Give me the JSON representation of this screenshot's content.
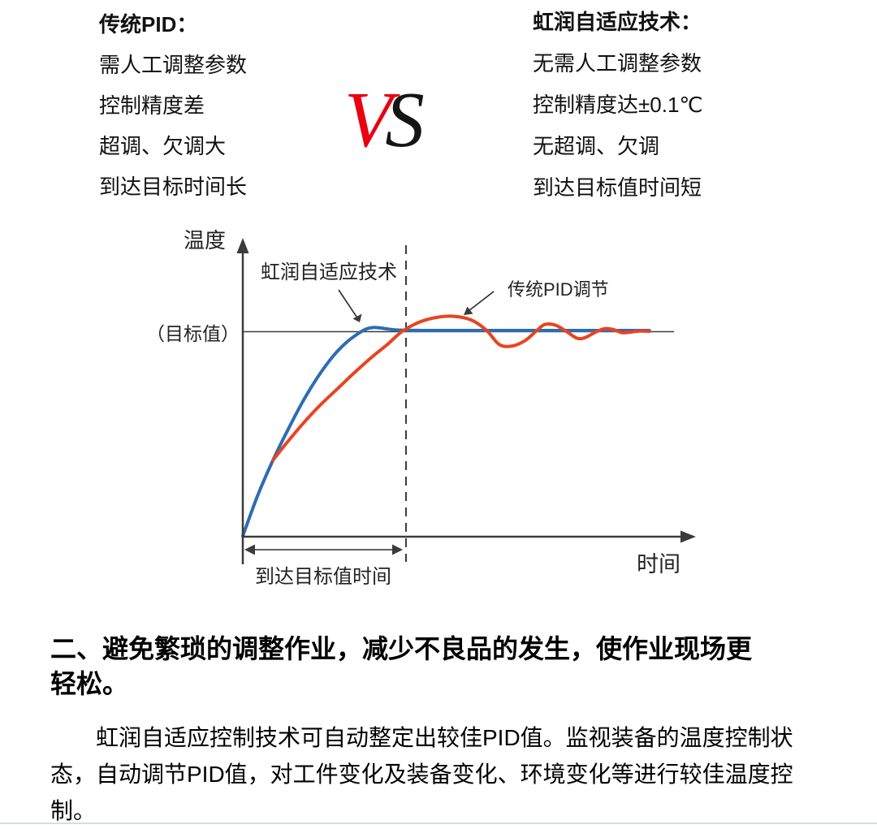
{
  "comparison": {
    "left": {
      "title": "传统PID：",
      "items": [
        "需人工调整参数",
        "控制精度差",
        "超调、欠调大",
        "到达目标时间长"
      ]
    },
    "vs": {
      "v": "V",
      "s": "S"
    },
    "right": {
      "title": "虹润自适应技术：",
      "items": [
        "无需人工调整参数",
        "控制精度达±0.1℃",
        "无超调、欠调",
        "到达目标值时间短"
      ]
    }
  },
  "chart_data": {
    "type": "line",
    "title": "",
    "xlabel": "时间",
    "ylabel": "温度",
    "target_label": "（目标值）",
    "target_value": 100,
    "axis_range": {
      "x": [
        0,
        100
      ],
      "y": [
        0,
        115
      ]
    },
    "grid": false,
    "legend_position": "inline-annotations",
    "annotations": {
      "adaptive_label": "虹润自适应技术",
      "pid_label": "传统PID调节",
      "reach_time_label": "到达目标值时间"
    },
    "series": [
      {
        "name": "虹润自适应技术",
        "color": "#2d6cb5",
        "points": [
          [
            0,
            0
          ],
          [
            3.5,
            20
          ],
          [
            7,
            37
          ],
          [
            10.5,
            52
          ],
          [
            14,
            66
          ],
          [
            17.5,
            78
          ],
          [
            21,
            88
          ],
          [
            24,
            94.5
          ],
          [
            26.5,
            98.5
          ],
          [
            28.5,
            101
          ],
          [
            30.5,
            101.9
          ],
          [
            33,
            101.3
          ],
          [
            36,
            100.6
          ],
          [
            42,
            100.4
          ],
          [
            60,
            100.4
          ],
          [
            80,
            100.4
          ],
          [
            94.3,
            100.4
          ]
        ]
      },
      {
        "name": "传统PID调节",
        "color": "#e8441f",
        "points": [
          [
            7,
            37
          ],
          [
            10,
            45
          ],
          [
            14,
            55
          ],
          [
            18,
            64
          ],
          [
            22,
            72
          ],
          [
            26,
            80
          ],
          [
            30,
            87.5
          ],
          [
            33.5,
            93.5
          ],
          [
            37,
            100
          ],
          [
            41,
            104.5
          ],
          [
            45,
            106.8
          ],
          [
            49,
            107.3
          ],
          [
            53,
            105.5
          ],
          [
            56.5,
            100.5
          ],
          [
            59.5,
            93.5
          ],
          [
            62.5,
            92.8
          ],
          [
            65.5,
            95.5
          ],
          [
            68,
            100
          ],
          [
            70,
            103.3
          ],
          [
            72.5,
            103
          ],
          [
            75,
            100
          ],
          [
            77.5,
            96.6
          ],
          [
            79.5,
            97
          ],
          [
            82,
            99.8
          ],
          [
            84,
            101.3
          ],
          [
            86,
            100.8
          ],
          [
            88,
            99.3
          ],
          [
            90,
            99.6
          ],
          [
            92,
            100.1
          ],
          [
            94.3,
            100
          ]
        ]
      }
    ]
  },
  "section": {
    "heading_lines": [
      "二、避免繁琐的调整作业，减少不良品的发生，使作业现场更",
      "轻松。"
    ],
    "body_lines": [
      "虹润自适应控制技术可自动整定出较佳PID值。监视装备的温度控制状",
      "态，自动调节PID值，对工件变化及装备变化、环境变化等进行较佳温度控",
      "制。"
    ]
  },
  "colors": {
    "adaptive_curve": "#2d6cb5",
    "pid_curve": "#e8441f",
    "vs_v": "#ea0010",
    "vs_s": "#151515"
  }
}
